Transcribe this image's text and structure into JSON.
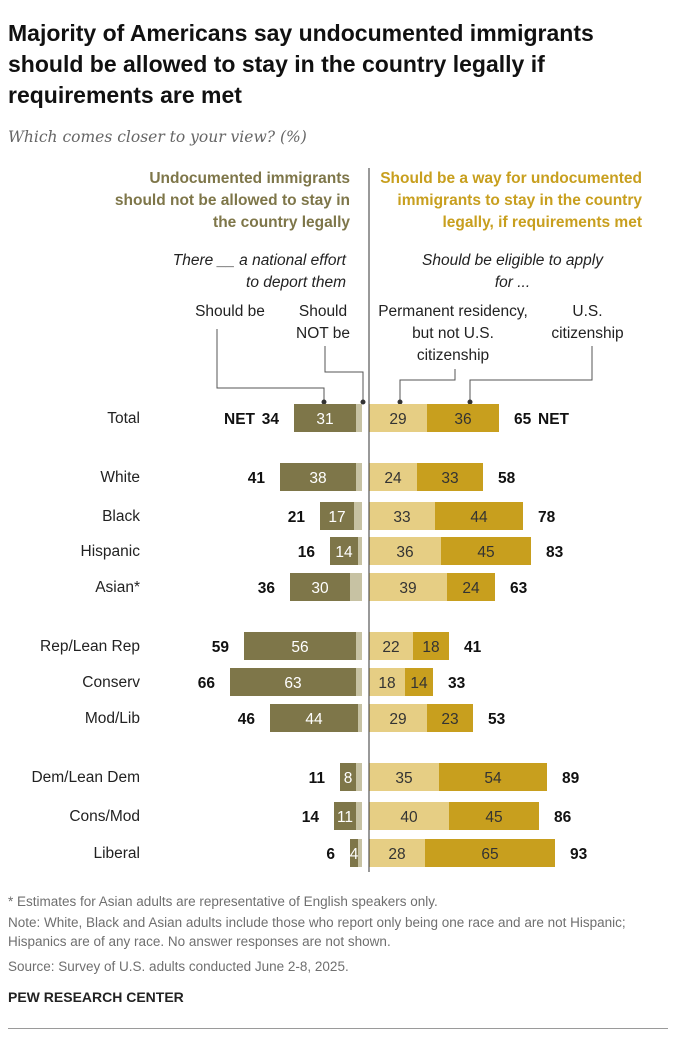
{
  "title": "Majority of Americans say undocumented immigrants should be allowed to stay in the country legally if requirements are met",
  "subtitle": "Which comes closer to your view? (%)",
  "left_header": "Undocumented immigrants should not be allowed to stay in the country legally",
  "right_header": "Should be a way for undocumented immigrants to stay in the country legally, if requirements met",
  "left_subheader": "There __ a national effort to deport them",
  "right_subheader": "Should be eligible to apply for ...",
  "col_should_be": "Should be",
  "col_should_not_be": "Should NOT be",
  "col_permanent": "Permanent residency, but not U.S. citizenship",
  "col_citizenship": "U.S. citizenship",
  "net_label": "NET",
  "colors": {
    "deport": "#7e7649",
    "not_deport": "#c7c2a3",
    "permanent": "#e6ce84",
    "citizenship": "#c89f1e",
    "left_header": "#7e7649",
    "right_header": "#c89f1e"
  },
  "chart_data": {
    "type": "bar",
    "orientation": "horizontal-diverging",
    "series": [
      {
        "name": "Should be (deport)",
        "values": [
          31,
          38,
          17,
          14,
          30,
          56,
          63,
          44,
          8,
          11,
          4
        ]
      },
      {
        "name": "Should NOT be (deport)",
        "values": [
          3,
          3,
          4,
          2,
          6,
          3,
          3,
          2,
          3,
          3,
          2
        ]
      },
      {
        "name": "Permanent residency, but not U.S. citizenship",
        "values": [
          29,
          24,
          33,
          36,
          39,
          22,
          18,
          29,
          35,
          40,
          28
        ]
      },
      {
        "name": "U.S. citizenship",
        "values": [
          36,
          33,
          44,
          45,
          24,
          18,
          14,
          23,
          54,
          45,
          65
        ]
      }
    ],
    "rows": [
      {
        "label": "Total",
        "deport": 31,
        "not_deport": 3,
        "left_net": 34,
        "permanent": 29,
        "citizenship": 36,
        "right_net": 65
      },
      {
        "label": "White",
        "deport": 38,
        "not_deport": 3,
        "left_net": 41,
        "permanent": 24,
        "citizenship": 33,
        "right_net": 58
      },
      {
        "label": "Black",
        "deport": 17,
        "not_deport": 4,
        "left_net": 21,
        "permanent": 33,
        "citizenship": 44,
        "right_net": 78
      },
      {
        "label": "Hispanic",
        "deport": 14,
        "not_deport": 2,
        "left_net": 16,
        "permanent": 36,
        "citizenship": 45,
        "right_net": 83
      },
      {
        "label": "Asian*",
        "deport": 30,
        "not_deport": 6,
        "left_net": 36,
        "permanent": 39,
        "citizenship": 24,
        "right_net": 63
      },
      {
        "label": "Rep/Lean Rep",
        "deport": 56,
        "not_deport": 3,
        "left_net": 59,
        "permanent": 22,
        "citizenship": 18,
        "right_net": 41
      },
      {
        "label": "Conserv",
        "deport": 63,
        "not_deport": 3,
        "left_net": 66,
        "permanent": 18,
        "citizenship": 14,
        "right_net": 33
      },
      {
        "label": "Mod/Lib",
        "deport": 44,
        "not_deport": 2,
        "left_net": 46,
        "permanent": 29,
        "citizenship": 23,
        "right_net": 53
      },
      {
        "label": "Dem/Lean Dem",
        "deport": 8,
        "not_deport": 3,
        "left_net": 11,
        "permanent": 35,
        "citizenship": 54,
        "right_net": 89
      },
      {
        "label": "Cons/Mod",
        "deport": 11,
        "not_deport": 3,
        "left_net": 14,
        "permanent": 40,
        "citizenship": 45,
        "right_net": 86
      },
      {
        "label": "Liberal",
        "deport": 4,
        "not_deport": 2,
        "left_net": 6,
        "permanent": 28,
        "citizenship": 65,
        "right_net": 93
      }
    ]
  },
  "footnote_asian": "* Estimates for Asian adults are representative of English speakers only.",
  "note": "Note: White, Black and Asian adults include those who report only being one race and are not Hispanic; Hispanics are of any race. No answer responses are not shown.",
  "source": "Source: Survey of U.S. adults conducted June 2-8, 2025.",
  "brand": "PEW RESEARCH CENTER"
}
